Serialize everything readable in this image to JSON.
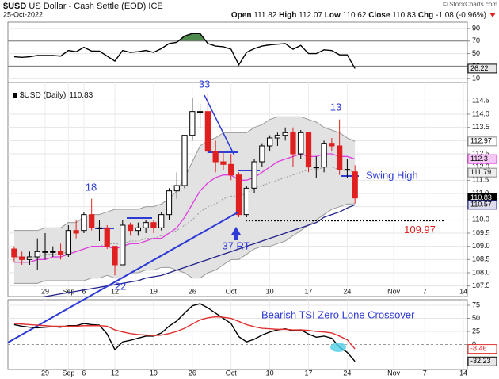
{
  "header": {
    "symbol": "$USD",
    "name": "US Dollar - Cash Settle (EOD) ICE",
    "date": "25-Oct-2022",
    "copyright": "© StockCharts.com",
    "open_label": "Open",
    "high_label": "High",
    "low_label": "Low",
    "close_label": "Close",
    "change_label": "Chg",
    "change": -1.08,
    "change_pct": "(-0.96%)"
  },
  "chart_data": [
    {
      "type": "line",
      "series": [
        {
          "color": "#000000",
          "values": [
            45,
            44,
            45,
            47,
            47,
            47,
            46,
            55,
            53,
            60,
            54,
            54,
            46,
            38,
            55,
            52,
            53,
            55,
            52,
            58,
            66,
            68,
            78,
            82,
            82,
            66,
            62,
            61,
            57,
            32,
            52,
            58,
            62,
            64,
            65,
            66,
            57,
            63,
            50,
            50,
            56,
            55,
            48,
            48,
            26.22,
            null,
            null,
            null,
            null,
            null,
            null,
            null,
            null,
            null,
            null,
            null,
            null,
            null,
            null
          ]
        }
      ],
      "ylim": [
        4,
        100
      ],
      "yticks": [
        10,
        30,
        50,
        70,
        90
      ],
      "overbought": 70,
      "oversold": 30,
      "fill_color": "#4e8a4e",
      "tag_color": "#e8e8e8"
    },
    {
      "type": "candlestick",
      "legend": "$USD (Daily)",
      "categories": [
        "2022-08-23",
        "2022-08-24",
        "2022-08-25",
        "2022-08-26",
        "2022-08-29",
        "2022-08-30",
        "2022-08-31",
        "2022-09-01",
        "2022-09-02",
        "2022-09-06",
        "2022-09-07",
        "2022-09-08",
        "2022-09-09",
        "2022-09-12",
        "2022-09-13",
        "2022-09-14",
        "2022-09-15",
        "2022-09-16",
        "2022-09-19",
        "2022-09-20",
        "2022-09-21",
        "2022-09-22",
        "2022-09-23",
        "2022-09-26",
        "2022-09-27",
        "2022-09-28",
        "2022-09-29",
        "2022-09-30",
        "2022-10-03",
        "2022-10-04",
        "2022-10-05",
        "2022-10-06",
        "2022-10-07",
        "2022-10-10",
        "2022-10-11",
        "2022-10-12",
        "2022-10-13",
        "2022-10-14",
        "2022-10-17",
        "2022-10-18",
        "2022-10-19",
        "2022-10-20",
        "2022-10-21",
        "2022-10-24",
        "2022-10-25",
        "2022-10-26",
        "2022-10-27",
        "2022-10-28",
        "2022-10-31",
        "2022-11-01",
        "2022-11-02",
        "2022-11-03",
        "2022-11-04",
        "2022-11-07",
        "2022-11-08",
        "2022-11-09",
        "2022-11-10",
        "2022-11-11",
        "2022-11-14"
      ],
      "open": [
        108.9,
        108.6,
        108.5,
        108.6,
        108.8,
        108.8,
        108.8,
        108.7,
        109.6,
        109.6,
        110.2,
        109.7,
        109.7,
        109.0,
        108.3,
        109.8,
        109.6,
        109.7,
        109.9,
        109.7,
        110.2,
        111.1,
        111.3,
        113.2,
        114.1,
        114.1,
        112.6,
        112.2,
        112.1,
        111.7,
        110.2,
        111.2,
        112.2,
        112.8,
        113.1,
        113.2,
        113.3,
        112.5,
        113.3,
        112.0,
        112.0,
        112.9,
        112.8,
        111.9,
        111.82,
        null,
        null,
        null,
        null,
        null,
        null,
        null,
        null,
        null,
        null,
        null,
        null,
        null,
        null
      ],
      "high": [
        109.0,
        108.8,
        108.8,
        109.3,
        109.5,
        109.0,
        109.1,
        109.8,
        110.0,
        110.3,
        110.8,
        110.0,
        109.8,
        109.0,
        110.0,
        109.9,
        109.9,
        110.0,
        110.0,
        110.3,
        111.2,
        111.8,
        113.2,
        114.6,
        114.4,
        114.8,
        113.0,
        112.6,
        112.5,
        111.8,
        111.3,
        112.3,
        112.9,
        113.2,
        113.3,
        113.5,
        113.5,
        113.4,
        113.3,
        112.4,
        113.0,
        113.1,
        113.8,
        112.3,
        112.07,
        null,
        null,
        null,
        null,
        null,
        null,
        null,
        null,
        null,
        null,
        null,
        null,
        null,
        null
      ],
      "low": [
        108.4,
        108.3,
        108.3,
        108.1,
        108.5,
        108.6,
        108.5,
        108.6,
        109.3,
        109.5,
        109.6,
        109.2,
        108.9,
        107.9,
        108.3,
        109.4,
        109.4,
        109.5,
        109.5,
        109.6,
        110.0,
        110.8,
        111.2,
        113.0,
        113.5,
        112.5,
        111.8,
        111.9,
        111.5,
        110.1,
        110.1,
        111.0,
        112.0,
        112.6,
        112.8,
        113.0,
        112.0,
        112.3,
        111.8,
        111.6,
        111.8,
        112.6,
        111.7,
        111.6,
        110.62,
        null,
        null,
        null,
        null,
        null,
        null,
        null,
        null,
        null,
        null,
        null,
        null,
        null,
        null
      ],
      "close": [
        108.6,
        108.5,
        108.6,
        108.8,
        108.8,
        108.8,
        108.7,
        109.6,
        109.5,
        110.2,
        109.7,
        109.7,
        109.0,
        108.3,
        109.8,
        109.6,
        109.7,
        109.9,
        109.7,
        110.2,
        111.1,
        111.3,
        113.2,
        114.1,
        114.1,
        112.6,
        112.2,
        112.1,
        111.7,
        110.2,
        111.2,
        112.2,
        112.8,
        113.1,
        113.2,
        113.3,
        112.5,
        113.3,
        112.0,
        112.0,
        112.9,
        112.8,
        111.9,
        111.91,
        110.83,
        null,
        null,
        null,
        null,
        null,
        null,
        null,
        null,
        null,
        null,
        null,
        null,
        null,
        null
      ],
      "up_color": "#000000",
      "down_color": "#e02020",
      "bands": {
        "color": "#999999",
        "fill": "#e2e2e2",
        "upper": [
          109.6,
          109.6,
          109.6,
          109.6,
          109.7,
          109.7,
          109.7,
          109.9,
          109.9,
          110.1,
          110.2,
          110.2,
          110.3,
          110.4,
          110.4,
          110.4,
          110.4,
          110.5,
          110.5,
          110.6,
          110.8,
          111.1,
          111.6,
          112.2,
          112.8,
          113.0,
          113.1,
          113.3,
          113.3,
          113.3,
          113.3,
          113.5,
          113.6,
          113.8,
          113.9,
          113.9,
          113.9,
          113.9,
          113.8,
          113.7,
          113.5,
          113.4,
          113.3,
          113.1,
          112.97,
          null,
          null,
          null,
          null,
          null,
          null,
          null,
          null,
          null,
          null,
          null,
          null,
          null,
          null
        ],
        "middle": [
          108.6,
          108.6,
          108.6,
          108.6,
          108.7,
          108.7,
          108.7,
          108.8,
          108.8,
          108.9,
          109.0,
          109.0,
          109.1,
          109.1,
          109.1,
          109.2,
          109.2,
          109.3,
          109.3,
          109.4,
          109.5,
          109.6,
          109.8,
          110.0,
          110.3,
          110.5,
          110.6,
          110.8,
          110.9,
          110.9,
          111.0,
          111.2,
          111.3,
          111.4,
          111.5,
          111.6,
          111.7,
          111.8,
          111.9,
          111.9,
          112.0,
          112.0,
          111.9,
          111.9,
          111.79,
          null,
          null,
          null,
          null,
          null,
          null,
          null,
          null,
          null,
          null,
          null,
          null,
          null,
          null
        ],
        "lower": [
          107.6,
          107.6,
          107.6,
          107.6,
          107.7,
          107.7,
          107.7,
          107.7,
          107.7,
          107.7,
          107.8,
          107.8,
          107.9,
          107.8,
          107.8,
          108.0,
          108.0,
          108.1,
          108.1,
          108.2,
          108.2,
          108.1,
          108.0,
          107.8,
          107.8,
          108.0,
          108.1,
          108.3,
          108.5,
          108.5,
          108.7,
          108.9,
          109.0,
          109.0,
          109.1,
          109.2,
          109.4,
          109.6,
          109.8,
          110.0,
          110.2,
          110.4,
          110.5,
          110.6,
          110.61,
          null,
          null,
          null,
          null,
          null,
          null,
          null,
          null,
          null,
          null,
          null,
          null,
          null,
          null
        ]
      },
      "overlays": [
        {
          "color": "#e03ee0",
          "values": [
            108.4,
            108.4,
            108.4,
            108.5,
            108.5,
            108.6,
            108.6,
            108.7,
            108.8,
            108.9,
            109.0,
            109.0,
            109.0,
            108.9,
            109.0,
            109.1,
            109.1,
            109.2,
            109.3,
            109.3,
            109.5,
            109.7,
            110.1,
            110.6,
            111.1,
            111.4,
            111.6,
            111.7,
            111.7,
            111.5,
            111.5,
            111.6,
            111.8,
            112.0,
            112.2,
            112.3,
            112.4,
            112.5,
            112.4,
            112.4,
            112.5,
            112.5,
            112.4,
            112.4,
            112.3,
            null,
            null,
            null,
            null,
            null,
            null,
            null,
            null,
            null,
            null,
            null,
            null,
            null,
            null
          ]
        },
        {
          "color": "#22228a",
          "values": [
            106.9,
            106.95,
            107.0,
            107.05,
            107.1,
            107.15,
            107.2,
            107.25,
            107.3,
            107.35,
            107.4,
            107.45,
            107.5,
            107.55,
            107.6,
            107.65,
            107.7,
            107.8,
            107.85,
            107.9,
            108.0,
            108.1,
            108.2,
            108.3,
            108.4,
            108.5,
            108.6,
            108.7,
            108.8,
            108.9,
            109.0,
            109.1,
            109.2,
            109.3,
            109.4,
            109.5,
            109.6,
            109.7,
            109.8,
            109.9,
            110.1,
            110.2,
            110.3,
            110.45,
            110.57,
            null,
            null,
            null,
            null,
            null,
            null,
            null,
            null,
            null,
            null,
            null,
            null,
            null,
            null
          ]
        }
      ],
      "ylim": [
        107.1,
        115.2
      ],
      "yticks": [
        107.5,
        {
          "value": 108,
          "label": "108.0"
        },
        108.5,
        {
          "value": 109,
          "label": "109.0"
        },
        109.5,
        {
          "value": 110,
          "label": "110.0"
        },
        110.5,
        {
          "value": 111,
          "label": "111.0"
        },
        111.5,
        {
          "value": 112,
          "label": "112.0"
        },
        112.5,
        {
          "value": 113,
          "label": "113.0"
        },
        113.5,
        {
          "value": 114,
          "label": "114.0"
        },
        114.5
      ],
      "xticks": [
        {
          "value": "2022-08-29",
          "label": "29"
        },
        {
          "value": "2022-09-01",
          "label": "Sep"
        },
        {
          "value": "2022-09-06",
          "label": "6"
        },
        {
          "value": "2022-09-12",
          "label": "12"
        },
        {
          "value": "2022-09-19",
          "label": "19"
        },
        {
          "value": "2022-09-26",
          "label": "26"
        },
        {
          "value": "2022-10-03",
          "label": "Oct"
        },
        {
          "value": "2022-10-10",
          "label": "10"
        },
        {
          "value": "2022-10-17",
          "label": "17"
        },
        {
          "value": "2022-10-24",
          "label": "24"
        },
        {
          "value": "2022-11-01",
          "label": "Nov"
        },
        {
          "value": "2022-11-07",
          "label": "7"
        },
        {
          "value": "2022-11-14",
          "label": "14"
        }
      ],
      "annotations": [
        "33",
        "18",
        "13",
        "22",
        "37 RT",
        "Swing High"
      ],
      "annotation_color": "#2d3ad6",
      "level": 109.97,
      "level_color": "#e02020"
    },
    {
      "type": "line",
      "series": [
        {
          "color": "#000000",
          "values": [
            38,
            35,
            33,
            32,
            33,
            34,
            33,
            36,
            36,
            40,
            38,
            37,
            20,
            -10,
            5,
            8,
            12,
            16,
            16,
            22,
            35,
            45,
            60,
            74,
            78,
            70,
            60,
            50,
            40,
            15,
            5,
            10,
            18,
            24,
            28,
            30,
            26,
            28,
            20,
            14,
            16,
            12,
            -5,
            -15,
            -32.23,
            null,
            null,
            null,
            null,
            null,
            null,
            null,
            null,
            null,
            null,
            null,
            null,
            null,
            null
          ]
        },
        {
          "color": "#e03030",
          "values": [
            40,
            39,
            38,
            37,
            36,
            35,
            35,
            35,
            35,
            36,
            36,
            36,
            35,
            28,
            24,
            21,
            19,
            18,
            17,
            18,
            21,
            25,
            31,
            39,
            47,
            51,
            53,
            52,
            50,
            44,
            38,
            34,
            31,
            30,
            29,
            29,
            28,
            28,
            27,
            25,
            24,
            22,
            16,
            9,
            -8.46,
            null,
            null,
            null,
            null,
            null,
            null,
            null,
            null,
            null,
            null,
            null,
            null,
            null,
            null
          ]
        }
      ],
      "ylim": [
        -47.7,
        85.6
      ],
      "yticks": [
        0,
        25,
        50,
        75
      ],
      "xticks": [
        {
          "value": "2022-08-29",
          "label": "29"
        },
        {
          "value": "2022-09-01",
          "label": "Sep"
        },
        {
          "value": "2022-09-06",
          "label": "6"
        },
        {
          "value": "2022-09-12",
          "label": "12"
        },
        {
          "value": "2022-09-19",
          "label": "19"
        },
        {
          "value": "2022-09-26",
          "label": "26"
        },
        {
          "value": "2022-10-03",
          "label": "Oct"
        },
        {
          "value": "2022-10-10",
          "label": "10"
        },
        {
          "value": "2022-10-17",
          "label": "17"
        },
        {
          "value": "2022-10-24",
          "label": "24"
        },
        {
          "value": "2022-11-01",
          "label": "Nov"
        },
        {
          "value": "2022-11-07",
          "label": "7"
        },
        {
          "value": "2022-11-14",
          "label": "14"
        }
      ],
      "annotation": "Bearish TSI Zero Lone Crossover",
      "annotation_color": "#2d3ad6"
    }
  ]
}
